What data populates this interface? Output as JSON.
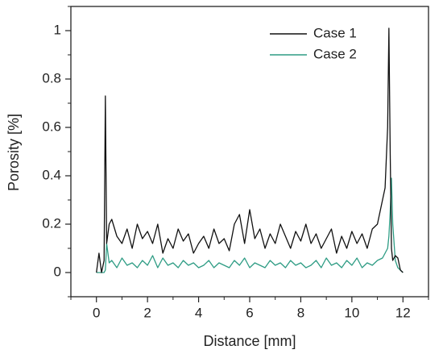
{
  "chart_data": {
    "type": "line",
    "x_label": "Distance [mm]",
    "y_label": "Porosity [%]",
    "xlim": [
      -1,
      13
    ],
    "ylim": [
      -0.1,
      1.1
    ],
    "xticks": [
      0,
      2,
      4,
      6,
      8,
      10,
      12
    ],
    "yticks": [
      0,
      0.2,
      0.4,
      0.6,
      0.8,
      1
    ],
    "xminorticks": [
      -1,
      1,
      3,
      5,
      7,
      9,
      11,
      13
    ],
    "yminorticks": [
      -0.1,
      0.1,
      0.3,
      0.5,
      0.7,
      0.9,
      1.1
    ],
    "legend": "upper right",
    "x": [
      0,
      0.1,
      0.2,
      0.3,
      0.35,
      0.4,
      0.5,
      0.6,
      0.8,
      1.0,
      1.2,
      1.4,
      1.6,
      1.8,
      2.0,
      2.2,
      2.4,
      2.6,
      2.8,
      3.0,
      3.2,
      3.4,
      3.6,
      3.8,
      4.0,
      4.2,
      4.4,
      4.6,
      4.8,
      5.0,
      5.2,
      5.4,
      5.6,
      5.8,
      6.0,
      6.2,
      6.4,
      6.6,
      6.8,
      7.0,
      7.2,
      7.4,
      7.6,
      7.8,
      8.0,
      8.2,
      8.4,
      8.6,
      8.8,
      9.0,
      9.2,
      9.4,
      9.6,
      9.8,
      10.0,
      10.2,
      10.4,
      10.6,
      10.8,
      11.0,
      11.2,
      11.3,
      11.4,
      11.45,
      11.5,
      11.55,
      11.6,
      11.7,
      11.8,
      11.9,
      12.0
    ],
    "series": [
      {
        "name": "Case 1",
        "color": "#111111",
        "values": [
          0,
          0.08,
          0,
          0.05,
          0.73,
          0.12,
          0.2,
          0.22,
          0.15,
          0.12,
          0.18,
          0.1,
          0.2,
          0.14,
          0.17,
          0.12,
          0.2,
          0.08,
          0.14,
          0.1,
          0.18,
          0.13,
          0.16,
          0.08,
          0.12,
          0.15,
          0.1,
          0.18,
          0.12,
          0.14,
          0.09,
          0.2,
          0.24,
          0.12,
          0.26,
          0.14,
          0.18,
          0.1,
          0.16,
          0.12,
          0.2,
          0.15,
          0.1,
          0.17,
          0.13,
          0.2,
          0.12,
          0.16,
          0.1,
          0.14,
          0.18,
          0.08,
          0.15,
          0.1,
          0.17,
          0.12,
          0.16,
          0.1,
          0.18,
          0.2,
          0.3,
          0.35,
          0.6,
          1.01,
          0.5,
          0.1,
          0.05,
          0.07,
          0.06,
          0.01,
          0
        ]
      },
      {
        "name": "Case 2",
        "color": "#2e9c84",
        "values": [
          0,
          0,
          0,
          0,
          0.01,
          0.12,
          0.04,
          0.05,
          0.02,
          0.06,
          0.03,
          0.04,
          0.02,
          0.05,
          0.03,
          0.07,
          0.02,
          0.06,
          0.03,
          0.04,
          0.02,
          0.05,
          0.03,
          0.04,
          0.02,
          0.03,
          0.05,
          0.02,
          0.04,
          0.03,
          0.02,
          0.05,
          0.03,
          0.06,
          0.02,
          0.04,
          0.03,
          0.02,
          0.05,
          0.03,
          0.04,
          0.02,
          0.05,
          0.03,
          0.04,
          0.02,
          0.03,
          0.05,
          0.02,
          0.06,
          0.03,
          0.04,
          0.02,
          0.05,
          0.03,
          0.06,
          0.02,
          0.04,
          0.03,
          0.05,
          0.06,
          0.08,
          0.1,
          0.15,
          0.25,
          0.39,
          0.2,
          0.05,
          0.02,
          0.01,
          0
        ]
      }
    ]
  }
}
